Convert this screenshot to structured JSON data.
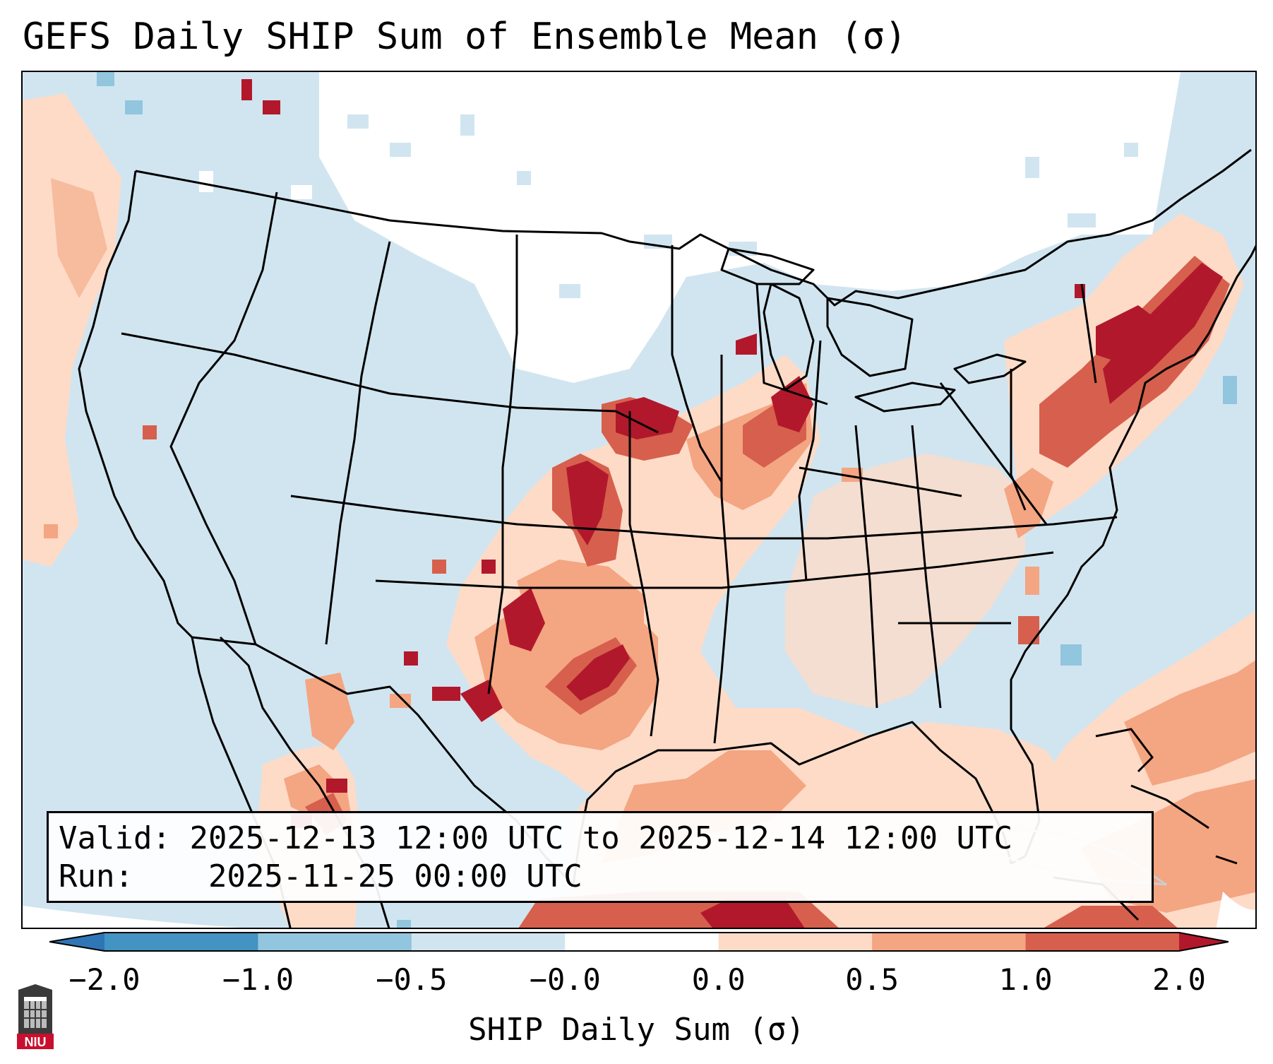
{
  "title": "GEFS Daily SHIP Sum of Ensemble Mean (σ)",
  "info": {
    "valid_label": "Valid:",
    "valid_value": "2025-12-13 12:00 UTC to 2025-12-14 12:00 UTC",
    "run_label": "Run:",
    "run_value": "2025-11-25 00:00 UTC"
  },
  "colorbar": {
    "label": "SHIP Daily Sum (σ)",
    "ticks": [
      "−2.0",
      "−1.0",
      "−0.5",
      "−0.0",
      "0.0",
      "0.5",
      "1.0",
      "2.0"
    ],
    "colors": {
      "under": "#2f76b6",
      "bin_-2_-1": "#4393c3",
      "bin_-1_-0.5": "#92c5de",
      "bin_-0.5_-0.0": "#d1e5f0",
      "bin_-0.0_0.0": "#ffffff",
      "bin_0.0_0.5": "#fddbc7",
      "bin_0.5_1.0": "#f4a582",
      "bin_1.0_2.0": "#d6604d",
      "over": "#b2182b"
    }
  },
  "map_legend_colors": {
    "ocean_land_base": "#d1e5f0",
    "neutral": "#ffffff",
    "light_positive": "#fddbc7",
    "moderate_positive": "#f4a582",
    "strong_positive": "#d6604d",
    "extreme_positive": "#b2182b",
    "light_negative": "#92c5de",
    "boundary_line": "#000000"
  },
  "logo": {
    "text": "NIU",
    "icon": "university-logo-icon"
  }
}
